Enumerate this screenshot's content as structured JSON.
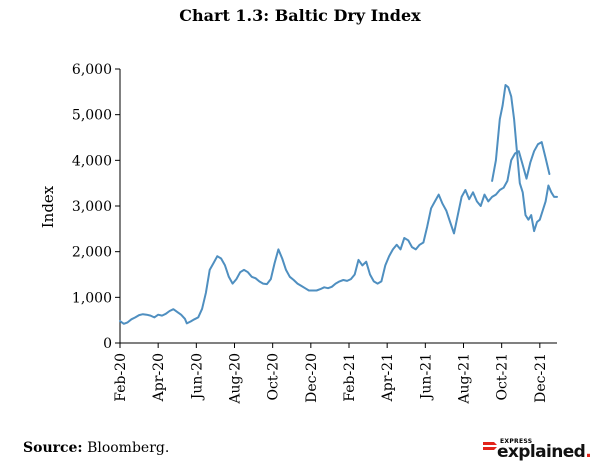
{
  "chart_data": {
    "type": "line",
    "title": "Chart 1.3: Baltic Dry Index",
    "xlabel": "",
    "ylabel": "Index",
    "ylim": [
      0,
      6000
    ],
    "yticks": [
      0,
      1000,
      2000,
      3000,
      4000,
      5000,
      6000
    ],
    "ytick_labels": [
      "0",
      "1,000",
      "2,000",
      "3,000",
      "4,000",
      "5,000",
      "6,000"
    ],
    "xlim_months": [
      0,
      22.9
    ],
    "xticks": [
      {
        "month": 0,
        "label": "Feb-20"
      },
      {
        "month": 2,
        "label": "Apr-20"
      },
      {
        "month": 4,
        "label": "Jun-20"
      },
      {
        "month": 6,
        "label": "Aug-20"
      },
      {
        "month": 8,
        "label": "Oct-20"
      },
      {
        "month": 10,
        "label": "Dec-20"
      },
      {
        "month": 12,
        "label": "Feb-21"
      },
      {
        "month": 14,
        "label": "Apr-21"
      },
      {
        "month": 16,
        "label": "Jun-21"
      },
      {
        "month": 18,
        "label": "Aug-21"
      },
      {
        "month": 20,
        "label": "Oct-21"
      },
      {
        "month": 22,
        "label": "Dec-21"
      }
    ],
    "grid": false,
    "series": [
      {
        "name": "Baltic Dry Index",
        "color": "#4f8fc0",
        "x_months": [
          0,
          0.2,
          0.4,
          0.6,
          0.8,
          1.0,
          1.2,
          1.4,
          1.6,
          1.8,
          2.0,
          2.2,
          2.4,
          2.6,
          2.8,
          3.0,
          3.2,
          3.4,
          3.5,
          3.7,
          3.9,
          4.1,
          4.3,
          4.5,
          4.7,
          4.9,
          5.1,
          5.3,
          5.5,
          5.7,
          5.9,
          6.1,
          6.3,
          6.5,
          6.7,
          6.9,
          7.1,
          7.3,
          7.5,
          7.7,
          7.9,
          8.1,
          8.3,
          8.5,
          8.7,
          8.9,
          9.1,
          9.3,
          9.5,
          9.7,
          9.9,
          10.1,
          10.3,
          10.5,
          10.7,
          10.9,
          11.1,
          11.3,
          11.5,
          11.7,
          11.9,
          12.1,
          12.3,
          12.5,
          12.7,
          12.9,
          13.1,
          13.3,
          13.5,
          13.7,
          13.9,
          14.1,
          14.3,
          14.5,
          14.7,
          14.9,
          15.1,
          15.3,
          15.5,
          15.7,
          15.9,
          16.1,
          16.3,
          16.5,
          16.7,
          16.9,
          17.1,
          17.3,
          17.5,
          17.7,
          17.9,
          18.1,
          18.3,
          18.5,
          18.7,
          18.9,
          19.1,
          19.3,
          19.5,
          19.7,
          19.9,
          20.1,
          20.3,
          20.5,
          20.7,
          20.9,
          21.1,
          21.3,
          21.5,
          21.7,
          21.9,
          22.1,
          22.3,
          22.5
        ],
        "values": [
          480,
          420,
          450,
          520,
          560,
          610,
          630,
          620,
          600,
          560,
          620,
          600,
          640,
          700,
          740,
          680,
          620,
          530,
          430,
          470,
          520,
          560,
          750,
          1100,
          1600,
          1750,
          1900,
          1850,
          1700,
          1450,
          1300,
          1400,
          1550,
          1600,
          1550,
          1450,
          1420,
          1350,
          1300,
          1290,
          1400,
          1750,
          2050,
          1850,
          1600,
          1450,
          1380,
          1300,
          1250,
          1200,
          1150,
          1150,
          1150,
          1180,
          1220,
          1200,
          1230,
          1300,
          1350,
          1380,
          1360,
          1400,
          1500,
          1820,
          1700,
          1780,
          1500,
          1350,
          1300,
          1350,
          1700,
          1900,
          2050,
          2150,
          2050,
          2300,
          2250,
          2100,
          2050,
          2150,
          2200,
          2550,
          2950,
          3100,
          3250,
          3050,
          2900,
          2650,
          2400,
          2800,
          3200,
          3350,
          3150,
          3300,
          3100,
          3000,
          3250,
          3100,
          3200,
          3250,
          3350,
          3400,
          3550,
          4000,
          4150,
          4200,
          3900,
          3600,
          3950,
          4200,
          4350,
          4400,
          4050,
          3700
        ]
      },
      {
        "name": "Baltic Dry Index (Sep-Dec 21)",
        "color": "#4f8fc0",
        "x_months": [
          19.5,
          19.7,
          19.9,
          20.05,
          20.2,
          20.35,
          20.5,
          20.65,
          20.8,
          20.95,
          21.1,
          21.25,
          21.4,
          21.55,
          21.7,
          21.85,
          22.0,
          22.15,
          22.3,
          22.45,
          22.6,
          22.75,
          22.9
        ],
        "values": [
          3550,
          4000,
          4900,
          5200,
          5650,
          5600,
          5400,
          4900,
          4200,
          3500,
          3300,
          2800,
          2700,
          2800,
          2450,
          2650,
          2700,
          2900,
          3100,
          3450,
          3300,
          3200,
          3200
        ]
      }
    ]
  },
  "footer": {
    "source_label": "Source:",
    "source_text": "Bloomberg.",
    "brand_small": "EXPRESS",
    "brand_main": "explained",
    "brand_dot": "."
  }
}
